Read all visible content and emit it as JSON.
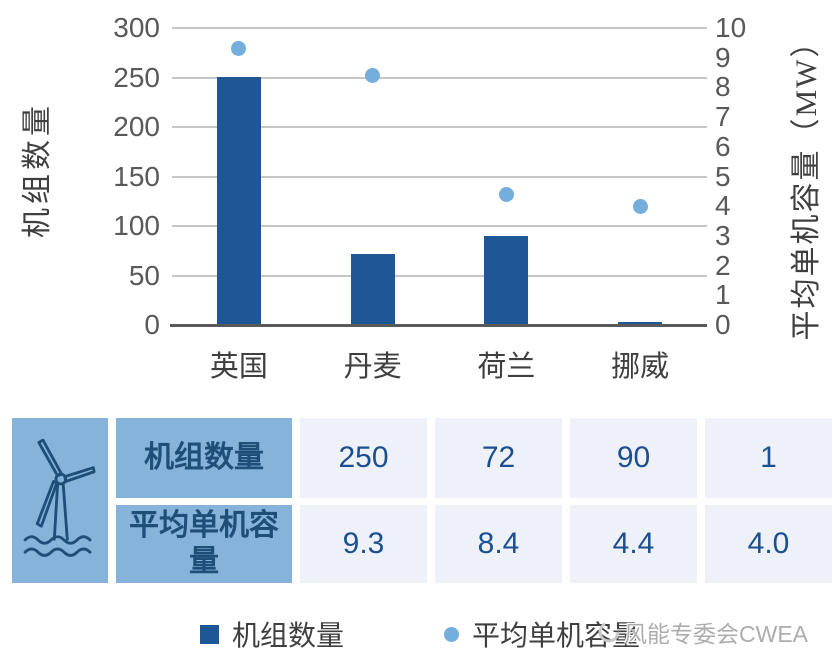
{
  "chart_data": {
    "type": "combo",
    "title": "",
    "categories": [
      "英国",
      "丹麦",
      "荷兰",
      "挪威"
    ],
    "series": [
      {
        "name": "机组数量",
        "type": "bar",
        "axis": "left",
        "values": [
          250,
          72,
          90,
          1
        ],
        "color": "#1F5795"
      },
      {
        "name": "平均单机容量",
        "type": "scatter",
        "axis": "right",
        "values": [
          9.3,
          8.4,
          4.4,
          4.0
        ],
        "color": "#74AEDC"
      }
    ],
    "left_axis": {
      "title": "机组数量",
      "min": 0,
      "max": 300,
      "step": 50,
      "tick_labels": [
        "0",
        "50",
        "100",
        "150",
        "200",
        "250",
        "300"
      ]
    },
    "right_axis": {
      "title": "平均单机容量（MW）",
      "min": 0,
      "max": 10,
      "step": 1,
      "tick_labels": [
        "0",
        "1",
        "2",
        "3",
        "4",
        "5",
        "6",
        "7",
        "8",
        "9",
        "10"
      ]
    },
    "grid": true,
    "legend_position": "bottom"
  },
  "table": {
    "icon": "offshore-wind-turbine-icon",
    "rows": [
      {
        "label": "机组数量",
        "values": [
          "250",
          "72",
          "90",
          "1"
        ]
      },
      {
        "label": "平均单机容量",
        "values": [
          "9.3",
          "8.4",
          "4.4",
          "4.0"
        ]
      }
    ]
  },
  "legend": {
    "items": [
      {
        "label": "机组数量",
        "marker": "square",
        "color": "#1F5795"
      },
      {
        "label": "平均单机容量",
        "marker": "dot",
        "color": "#74AEDC"
      }
    ]
  },
  "watermark": {
    "text": "风能专委会CWEA"
  },
  "colors": {
    "bar": "#1F5795",
    "dot": "#74AEDC",
    "grid": "#C6C6C6",
    "axis_line": "#595959",
    "tick_text": "#595959",
    "label_text": "#3F3F3F",
    "table_header_bg": "#85B3DA",
    "table_value_bg": "#EEF2F8",
    "table_text": "#1F4E79",
    "watermark_text": "#ADADAD"
  }
}
